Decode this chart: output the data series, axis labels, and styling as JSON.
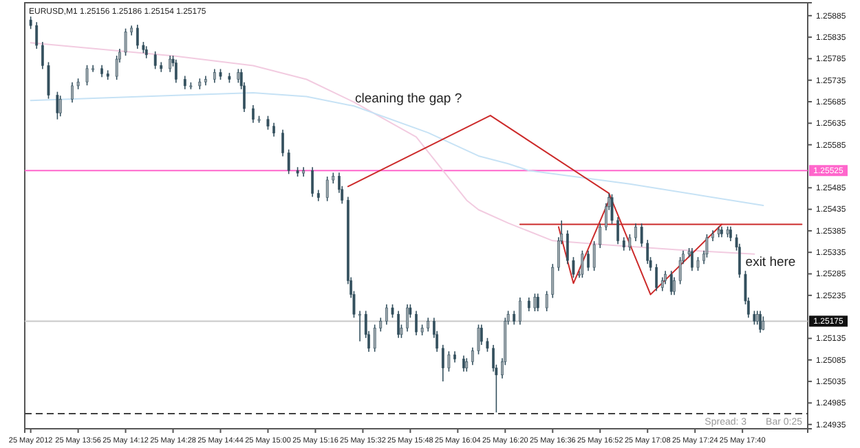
{
  "chart_data": {
    "type": "candlestick",
    "title": "EURUSD,M1  1.25156 1.25186 1.25154 1.25175",
    "color": "#34505e",
    "x": [
      "2012-05-25T13:40",
      "2012-05-25T13:42",
      "2012-05-25T13:44",
      "2012-05-25T13:46",
      "2012-05-25T13:49",
      "2012-05-25T13:50",
      "2012-05-25T13:54",
      "2012-05-25T13:56",
      "2012-05-25T13:59",
      "2012-05-25T14:01",
      "2012-05-25T14:04",
      "2012-05-25T14:06",
      "2012-05-25T14:09",
      "2012-05-25T14:10",
      "2012-05-25T14:12",
      "2012-05-25T14:14",
      "2012-05-25T14:16",
      "2012-05-25T14:18",
      "2012-05-25T14:19",
      "2012-05-25T14:22",
      "2012-05-25T14:24",
      "2012-05-25T14:27",
      "2012-05-25T14:28",
      "2012-05-25T14:29",
      "2012-05-25T14:32",
      "2012-05-25T14:34",
      "2012-05-25T14:37",
      "2012-05-25T14:39",
      "2012-05-25T14:42",
      "2012-05-25T14:44",
      "2012-05-25T14:47",
      "2012-05-25T14:50",
      "2012-05-25T14:51",
      "2012-05-25T14:52",
      "2012-05-25T14:55",
      "2012-05-25T14:57",
      "2012-05-25T15:00",
      "2012-05-25T15:02",
      "2012-05-25T15:05",
      "2012-05-25T15:07",
      "2012-05-25T15:10",
      "2012-05-25T15:12",
      "2012-05-25T15:15",
      "2012-05-25T15:17",
      "2012-05-25T15:20",
      "2012-05-25T15:22",
      "2012-05-25T15:24",
      "2012-05-25T15:25",
      "2012-05-25T15:27",
      "2012-05-25T15:28",
      "2012-05-25T15:29",
      "2012-05-25T15:31",
      "2012-05-25T15:33",
      "2012-05-25T15:34",
      "2012-05-25T15:36",
      "2012-05-25T15:38",
      "2012-05-25T15:40",
      "2012-05-25T15:42",
      "2012-05-25T15:44",
      "2012-05-25T15:45",
      "2012-05-25T15:47",
      "2012-05-25T15:48",
      "2012-05-25T15:50",
      "2012-05-25T15:52",
      "2012-05-25T15:54",
      "2012-05-25T15:56",
      "2012-05-25T15:57",
      "2012-05-25T15:59",
      "2012-05-25T16:01",
      "2012-05-25T16:03",
      "2012-05-25T16:06",
      "2012-05-25T16:07",
      "2012-05-25T16:09",
      "2012-05-25T16:11",
      "2012-05-25T16:12",
      "2012-05-25T16:14",
      "2012-05-25T16:16",
      "2012-05-25T16:17",
      "2012-05-25T16:19",
      "2012-05-25T16:20",
      "2012-05-25T16:21",
      "2012-05-25T16:23",
      "2012-05-25T16:25",
      "2012-05-25T16:28",
      "2012-05-25T16:30",
      "2012-05-25T16:31",
      "2012-05-25T16:34",
      "2012-05-25T16:36",
      "2012-05-25T16:38",
      "2012-05-25T16:39",
      "2012-05-25T16:41",
      "2012-05-25T16:43",
      "2012-05-25T16:45",
      "2012-05-25T16:46",
      "2012-05-25T16:48",
      "2012-05-25T16:50",
      "2012-05-25T16:52",
      "2012-05-25T16:54",
      "2012-05-25T16:55",
      "2012-05-25T16:56",
      "2012-05-25T16:58",
      "2012-05-25T17:00",
      "2012-05-25T17:02",
      "2012-05-25T17:04",
      "2012-05-25T17:06",
      "2012-05-25T17:08",
      "2012-05-25T17:09",
      "2012-05-25T17:11",
      "2012-05-25T17:13",
      "2012-05-25T17:14",
      "2012-05-25T17:16",
      "2012-05-25T17:17",
      "2012-05-25T17:19",
      "2012-05-25T17:20",
      "2012-05-25T17:22",
      "2012-05-25T17:23",
      "2012-05-25T17:25",
      "2012-05-25T17:27",
      "2012-05-25T17:28",
      "2012-05-25T17:30",
      "2012-05-25T17:32",
      "2012-05-25T17:33",
      "2012-05-25T17:35",
      "2012-05-25T17:36",
      "2012-05-25T17:38",
      "2012-05-25T17:39",
      "2012-05-25T17:41",
      "2012-05-25T17:42",
      "2012-05-25T17:44",
      "2012-05-25T17:45",
      "2012-05-25T17:46",
      "2012-05-25T17:47"
    ],
    "ohlc": [
      [
        1.25875,
        1.25883,
        1.25854,
        1.25862
      ],
      [
        1.25862,
        1.2587,
        1.25808,
        1.25816
      ],
      [
        1.25816,
        1.25824,
        1.25761,
        1.25769
      ],
      [
        1.25769,
        1.25777,
        1.25692,
        1.257
      ],
      [
        1.257,
        1.25708,
        1.25644,
        1.25659
      ],
      [
        1.25659,
        1.25699,
        1.25651,
        1.25691
      ],
      [
        1.25691,
        1.2573,
        1.25683,
        1.25722
      ],
      [
        1.25722,
        1.25739,
        1.25714,
        1.25731
      ],
      [
        1.25731,
        1.2577,
        1.25723,
        1.25762
      ],
      [
        1.25762,
        1.2577,
        1.25754,
        1.25762
      ],
      [
        1.25762,
        1.2577,
        1.25742,
        1.2575
      ],
      [
        1.2575,
        1.25758,
        1.25736,
        1.25744
      ],
      [
        1.25744,
        1.25792,
        1.25736,
        1.25784
      ],
      [
        1.25784,
        1.25808,
        1.25776,
        1.258
      ],
      [
        1.258,
        1.25855,
        1.25792,
        1.25847
      ],
      [
        1.25847,
        1.25862,
        1.25839,
        1.25856
      ],
      [
        1.25856,
        1.25864,
        1.25808,
        1.25816
      ],
      [
        1.25816,
        1.25824,
        1.25798,
        1.25806
      ],
      [
        1.25806,
        1.25814,
        1.25786,
        1.25794
      ],
      [
        1.25794,
        1.25802,
        1.25761,
        1.25769
      ],
      [
        1.25769,
        1.25777,
        1.25754,
        1.25762
      ],
      [
        1.25762,
        1.25792,
        1.25754,
        1.25784
      ],
      [
        1.25784,
        1.25792,
        1.25767,
        1.25775
      ],
      [
        1.25775,
        1.25783,
        1.25729,
        1.25737
      ],
      [
        1.25737,
        1.25745,
        1.25714,
        1.25722
      ],
      [
        1.25722,
        1.2573,
        1.25714,
        1.25722
      ],
      [
        1.25722,
        1.25739,
        1.25714,
        1.25731
      ],
      [
        1.25731,
        1.25745,
        1.25723,
        1.25737
      ],
      [
        1.25737,
        1.25761,
        1.25729,
        1.25753
      ],
      [
        1.25753,
        1.25761,
        1.25736,
        1.25744
      ],
      [
        1.25744,
        1.25752,
        1.25729,
        1.25737
      ],
      [
        1.25737,
        1.25761,
        1.25729,
        1.25753
      ],
      [
        1.25753,
        1.25761,
        1.25714,
        1.25722
      ],
      [
        1.25722,
        1.2573,
        1.25661,
        1.25669
      ],
      [
        1.25669,
        1.25677,
        1.25636,
        1.25644
      ],
      [
        1.25644,
        1.25652,
        1.25636,
        1.25644
      ],
      [
        1.25644,
        1.25652,
        1.2562,
        1.25628
      ],
      [
        1.25628,
        1.25636,
        1.25604,
        1.25612
      ],
      [
        1.25612,
        1.2562,
        1.25558,
        1.25566
      ],
      [
        1.25566,
        1.25574,
        1.25517,
        1.25525
      ],
      [
        1.25525,
        1.25533,
        1.25511,
        1.25519
      ],
      [
        1.25519,
        1.25533,
        1.25511,
        1.25525
      ],
      [
        1.25525,
        1.25533,
        1.25464,
        1.25472
      ],
      [
        1.25472,
        1.2548,
        1.25454,
        1.25462
      ],
      [
        1.25462,
        1.25511,
        1.25454,
        1.25503
      ],
      [
        1.25503,
        1.2552,
        1.25495,
        1.25512
      ],
      [
        1.25512,
        1.2552,
        1.25473,
        1.25481
      ],
      [
        1.25481,
        1.25489,
        1.25448,
        1.25456
      ],
      [
        1.25456,
        1.25464,
        1.25261,
        1.25269
      ],
      [
        1.25269,
        1.25277,
        1.25229,
        1.25237
      ],
      [
        1.25237,
        1.25245,
        1.25183,
        1.25191
      ],
      [
        1.25191,
        1.25199,
        1.25128,
        1.25191
      ],
      [
        1.25191,
        1.25199,
        1.25136,
        1.25144
      ],
      [
        1.25144,
        1.25152,
        1.25104,
        1.25112
      ],
      [
        1.25112,
        1.25167,
        1.25104,
        1.25159
      ],
      [
        1.25159,
        1.25183,
        1.25151,
        1.25175
      ],
      [
        1.25175,
        1.25214,
        1.25167,
        1.25206
      ],
      [
        1.25206,
        1.25214,
        1.25183,
        1.25191
      ],
      [
        1.25191,
        1.25199,
        1.25136,
        1.25144
      ],
      [
        1.25144,
        1.25167,
        1.25136,
        1.25159
      ],
      [
        1.25159,
        1.25214,
        1.25151,
        1.25206
      ],
      [
        1.25206,
        1.25214,
        1.25183,
        1.25191
      ],
      [
        1.25191,
        1.25199,
        1.25142,
        1.2515
      ],
      [
        1.2515,
        1.25167,
        1.25142,
        1.25159
      ],
      [
        1.25159,
        1.25183,
        1.25151,
        1.25175
      ],
      [
        1.25175,
        1.25183,
        1.25136,
        1.25144
      ],
      [
        1.25144,
        1.25152,
        1.25104,
        1.25112
      ],
      [
        1.25112,
        1.2512,
        1.25035,
        1.25066
      ],
      [
        1.25066,
        1.25105,
        1.25058,
        1.25097
      ],
      [
        1.25097,
        1.25105,
        1.25079,
        1.25087
      ],
      [
        1.25087,
        1.25095,
        1.25058,
        1.25066
      ],
      [
        1.25066,
        1.25089,
        1.25058,
        1.25081
      ],
      [
        1.25081,
        1.25114,
        1.25073,
        1.25106
      ],
      [
        1.25106,
        1.25167,
        1.25098,
        1.25159
      ],
      [
        1.25159,
        1.25167,
        1.2512,
        1.25128
      ],
      [
        1.25128,
        1.25136,
        1.25104,
        1.25112
      ],
      [
        1.25112,
        1.2512,
        1.25058,
        1.25066
      ],
      [
        1.25066,
        1.25074,
        1.24963,
        1.2505
      ],
      [
        1.2505,
        1.25089,
        1.25042,
        1.25081
      ],
      [
        1.25081,
        1.25183,
        1.25073,
        1.25175
      ],
      [
        1.25175,
        1.25199,
        1.25167,
        1.25191
      ],
      [
        1.25191,
        1.25199,
        1.25167,
        1.25175
      ],
      [
        1.25175,
        1.2523,
        1.25167,
        1.25222
      ],
      [
        1.25222,
        1.2523,
        1.25198,
        1.25206
      ],
      [
        1.25206,
        1.25239,
        1.25198,
        1.25231
      ],
      [
        1.25231,
        1.25239,
        1.25198,
        1.25206
      ],
      [
        1.25206,
        1.25245,
        1.25198,
        1.25237
      ],
      [
        1.25237,
        1.25308,
        1.25229,
        1.253
      ],
      [
        1.253,
        1.2537,
        1.25292,
        1.25362
      ],
      [
        1.25362,
        1.25409,
        1.25354,
        1.25378
      ],
      [
        1.25378,
        1.25386,
        1.25308,
        1.25316
      ],
      [
        1.25316,
        1.25324,
        1.25276,
        1.25284
      ],
      [
        1.25284,
        1.25292,
        1.25276,
        1.25284
      ],
      [
        1.25284,
        1.25339,
        1.25276,
        1.25331
      ],
      [
        1.25331,
        1.25339,
        1.25292,
        1.253
      ],
      [
        1.253,
        1.25361,
        1.25292,
        1.25353
      ],
      [
        1.25353,
        1.25402,
        1.25345,
        1.25394
      ],
      [
        1.25394,
        1.25449,
        1.25386,
        1.25441
      ],
      [
        1.25441,
        1.25472,
        1.25433,
        1.25462
      ],
      [
        1.25462,
        1.2547,
        1.25401,
        1.25409
      ],
      [
        1.25409,
        1.25417,
        1.25354,
        1.25362
      ],
      [
        1.25362,
        1.2537,
        1.25339,
        1.25347
      ],
      [
        1.25347,
        1.25377,
        1.25339,
        1.25369
      ],
      [
        1.25369,
        1.25402,
        1.25361,
        1.25394
      ],
      [
        1.25394,
        1.25402,
        1.25348,
        1.25356
      ],
      [
        1.25356,
        1.25364,
        1.25308,
        1.25316
      ],
      [
        1.25316,
        1.25324,
        1.25292,
        1.253
      ],
      [
        1.253,
        1.25308,
        1.25245,
        1.25253
      ],
      [
        1.25253,
        1.25277,
        1.25245,
        1.25269
      ],
      [
        1.25269,
        1.25292,
        1.25261,
        1.25284
      ],
      [
        1.25284,
        1.25292,
        1.25236,
        1.25244
      ],
      [
        1.25244,
        1.25277,
        1.25236,
        1.25269
      ],
      [
        1.25269,
        1.25324,
        1.25261,
        1.25316
      ],
      [
        1.25316,
        1.25339,
        1.25308,
        1.25331
      ],
      [
        1.25331,
        1.25345,
        1.25323,
        1.25337
      ],
      [
        1.25337,
        1.25345,
        1.25292,
        1.253
      ],
      [
        1.253,
        1.25324,
        1.25292,
        1.25316
      ],
      [
        1.25316,
        1.25339,
        1.25308,
        1.25331
      ],
      [
        1.25331,
        1.25377,
        1.25323,
        1.25369
      ],
      [
        1.25369,
        1.25386,
        1.25361,
        1.25378
      ],
      [
        1.25378,
        1.25395,
        1.2537,
        1.25387
      ],
      [
        1.25387,
        1.25395,
        1.2537,
        1.25378
      ],
      [
        1.25378,
        1.25395,
        1.2537,
        1.25387
      ],
      [
        1.25387,
        1.25395,
        1.25361,
        1.25369
      ],
      [
        1.25369,
        1.25377,
        1.25339,
        1.25347
      ],
      [
        1.25347,
        1.25355,
        1.25276,
        1.25284
      ],
      [
        1.25284,
        1.25292,
        1.25214,
        1.25222
      ],
      [
        1.25222,
        1.2523,
        1.25183,
        1.25191
      ],
      [
        1.25191,
        1.25199,
        1.25167,
        1.25175
      ],
      [
        1.25175,
        1.25199,
        1.25167,
        1.25191
      ],
      [
        1.25191,
        1.25199,
        1.25148,
        1.25156
      ],
      [
        1.25156,
        1.25186,
        1.25154,
        1.25175
      ]
    ],
    "series": [
      {
        "type": "line",
        "color": "#f2cbe0",
        "x": [
          "2012-05-25T13:40",
          "2012-05-25T14:29",
          "2012-05-25T14:55",
          "2012-05-25T15:13",
          "2012-05-25T15:29",
          "2012-05-25T15:50",
          "2012-05-25T16:07",
          "2012-05-25T16:11",
          "2012-05-25T16:21",
          "2012-05-25T16:36",
          "2012-05-25T16:53",
          "2012-05-25T17:18",
          "2012-05-25T17:44"
        ],
        "values": [
          1.25822,
          1.25791,
          1.25769,
          1.25737,
          1.25684,
          1.25603,
          1.25456,
          1.25434,
          1.25403,
          1.25362,
          1.25353,
          1.25341,
          1.25331
        ]
      },
      {
        "type": "line",
        "color": "#c6e2f5",
        "x": [
          "2012-05-25T13:40",
          "2012-05-25T14:29",
          "2012-05-25T14:55",
          "2012-05-25T15:13",
          "2012-05-25T15:29",
          "2012-05-25T15:54",
          "2012-05-25T16:11",
          "2012-05-25T16:21",
          "2012-05-25T16:28",
          "2012-05-25T17:02",
          "2012-05-25T17:47"
        ],
        "values": [
          1.25688,
          1.257,
          1.25706,
          1.25697,
          1.25675,
          1.25613,
          1.25559,
          1.25541,
          1.25525,
          1.25494,
          1.25444
        ]
      },
      {
        "type": "line",
        "color": "#cc2a2a",
        "x": [
          "2012-05-25T15:27",
          "2012-05-25T16:15",
          "2012-05-25T16:55",
          "2012-05-25T17:09",
          "2012-05-25T17:33"
        ],
        "values": [
          1.25488,
          1.25653,
          1.25472,
          1.25237,
          1.254
        ]
      },
      {
        "type": "line",
        "color": "#cc2a2a",
        "x": [
          "2012-05-25T16:38",
          "2012-05-25T16:43",
          "2012-05-25T16:55"
        ],
        "values": [
          1.25394,
          1.25263,
          1.25456
        ]
      },
      {
        "type": "line",
        "color": "#cc2a2a",
        "x": [
          "2012-05-25T16:25",
          "2012-05-25T18:00"
        ],
        "values": [
          1.254,
          1.254
        ]
      }
    ],
    "xlim": [
      "2012-05-25T13:38",
      "2012-05-25T18:02"
    ],
    "xticks": [
      {
        "value": "2012-05-25T13:40",
        "label": "25 May 2012"
      },
      {
        "value": "2012-05-25T13:56",
        "label": "25 May 13:56"
      },
      {
        "value": "2012-05-25T14:12",
        "label": "25 May 14:12"
      },
      {
        "value": "2012-05-25T14:28",
        "label": "25 May 14:28"
      },
      {
        "value": "2012-05-25T14:44",
        "label": "25 May 14:44"
      },
      {
        "value": "2012-05-25T15:00",
        "label": "25 May 15:00"
      },
      {
        "value": "2012-05-25T15:16",
        "label": "25 May 15:16"
      },
      {
        "value": "2012-05-25T15:32",
        "label": "25 May 15:32"
      },
      {
        "value": "2012-05-25T15:48",
        "label": "25 May 15:48"
      },
      {
        "value": "2012-05-25T16:04",
        "label": "25 May 16:04"
      },
      {
        "value": "2012-05-25T16:20",
        "label": "25 May 16:20"
      },
      {
        "value": "2012-05-25T16:36",
        "label": "25 May 16:36"
      },
      {
        "value": "2012-05-25T16:52",
        "label": "25 May 16:52"
      },
      {
        "value": "2012-05-25T17:08",
        "label": "25 May 17:08"
      },
      {
        "value": "2012-05-25T17:24",
        "label": "25 May 17:24"
      },
      {
        "value": "2012-05-25T17:40",
        "label": "25 May 17:40"
      }
    ],
    "ylim": [
      1.24925,
      1.25915
    ],
    "yticks": [
      1.24935,
      1.24985,
      1.25035,
      1.25085,
      1.25135,
      1.25235,
      1.25285,
      1.25335,
      1.25385,
      1.25435,
      1.25485,
      1.25585,
      1.25635,
      1.25685,
      1.25735,
      1.25785,
      1.25835,
      1.25885
    ],
    "ref_lines": [
      {
        "axis": "y",
        "value": 1.25525,
        "label": "1.25525",
        "color": "#ff66cc",
        "line_style": "solid"
      },
      {
        "axis": "y",
        "value": 1.25175,
        "label": "1.25175",
        "color": "#c8c8c8",
        "line_style": "solid"
      },
      {
        "axis": "y",
        "value": 1.2496,
        "color": "#404040",
        "line_style": "dashed"
      }
    ],
    "annotations": [
      "cleaning the gap ?",
      "exit here",
      "Spread: 3",
      "Bar 0:25"
    ]
  }
}
